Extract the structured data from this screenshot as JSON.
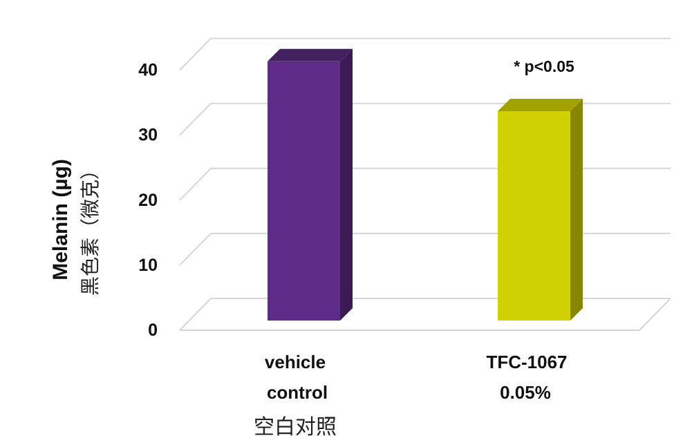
{
  "chart_data": {
    "type": "bar",
    "title": "",
    "categories": [
      "vehicle control",
      "TFC-1067 0.05%"
    ],
    "category_labels": [
      {
        "line1": "vehicle",
        "line2": "control",
        "line3": "空白对照"
      },
      {
        "line1": "TFC-1067",
        "line2": "0.05%",
        "line3": ""
      }
    ],
    "values": [
      40,
      32.3
    ],
    "colors": [
      "#5f2b88",
      "#d1d000"
    ],
    "side_colors": [
      "#3b1a56",
      "#868600"
    ],
    "top_colors": [
      "#43205f",
      "#a2a200"
    ],
    "ylabel": "Melanin (µg)",
    "ylabel_sub": "黑色素（微克）",
    "ylim": [
      0,
      40
    ],
    "yticks": [
      "0",
      "10",
      "20",
      "30",
      "40"
    ],
    "grid": true,
    "three_d": true,
    "annotation": "* p<0.05"
  }
}
